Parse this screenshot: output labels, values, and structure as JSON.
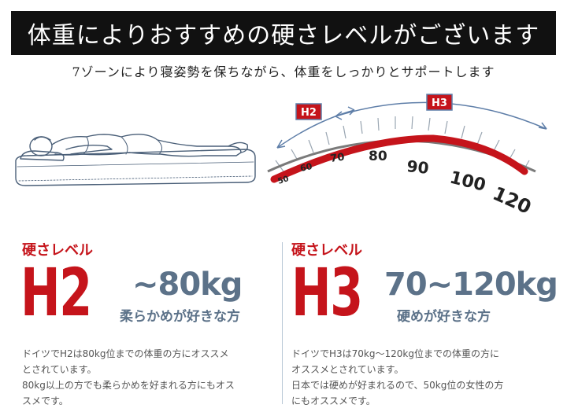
{
  "header": {
    "title": "体重によりおすすめの硬さレベルがございます",
    "subtitle": "7ゾーンにより寝姿勢を保ちながら、体重をしっかりとサポートします"
  },
  "gauge": {
    "ticks": [
      "50",
      "60",
      "70",
      "80",
      "90",
      "100",
      "120"
    ],
    "badge_h2": "H2",
    "badge_h3": "H3"
  },
  "left": {
    "kataSaLevel": "硬さレベル",
    "level": "H2",
    "range": "~80kg",
    "pref": "柔らかめが好きな方",
    "desc_lines": [
      "ドイツでH2は80kg位までの体重の方にオススメ",
      "とされています。",
      "80kg以上の方でも柔らかめを好まれる方にもオス",
      "スメです。"
    ]
  },
  "right": {
    "kataSaLevel": "硬さレベル",
    "level": "H3",
    "range": "70~120kg",
    "pref": "硬めが好きな方",
    "desc_lines": [
      "ドイツでH3は70kg～120kg位までの体重の方に",
      "オススメとされています。",
      "日本では硬めが好まれるので、50kg位の女性の方",
      "にもオススメです。"
    ]
  },
  "colors": {
    "accent_red": "#c5141b",
    "slate_blue": "#5c7289",
    "banner_bg": "#111111"
  }
}
